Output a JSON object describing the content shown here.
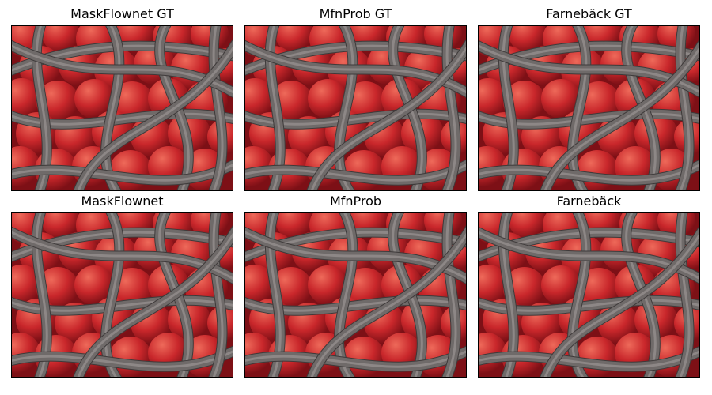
{
  "figure": {
    "panels": [
      {
        "title": "MaskFlownet GT",
        "image": "apples-with-grey-tubes"
      },
      {
        "title": "MfnProb GT",
        "image": "apples-with-grey-tubes"
      },
      {
        "title": "Farnebäck GT",
        "image": "apples-with-grey-tubes"
      },
      {
        "title": "MaskFlownet",
        "image": "apples-with-grey-tubes"
      },
      {
        "title": "MfnProb",
        "image": "apples-with-grey-tubes"
      },
      {
        "title": "Farnebäck",
        "image": "apples-with-grey-tubes"
      }
    ],
    "colors": {
      "apple": "#c9272b",
      "apple_highlight": "#ee6a5a",
      "apple_shadow": "#7d1016",
      "tube": "#6f6a69",
      "tube_highlight": "#9a9493",
      "frame": "#000000"
    }
  }
}
